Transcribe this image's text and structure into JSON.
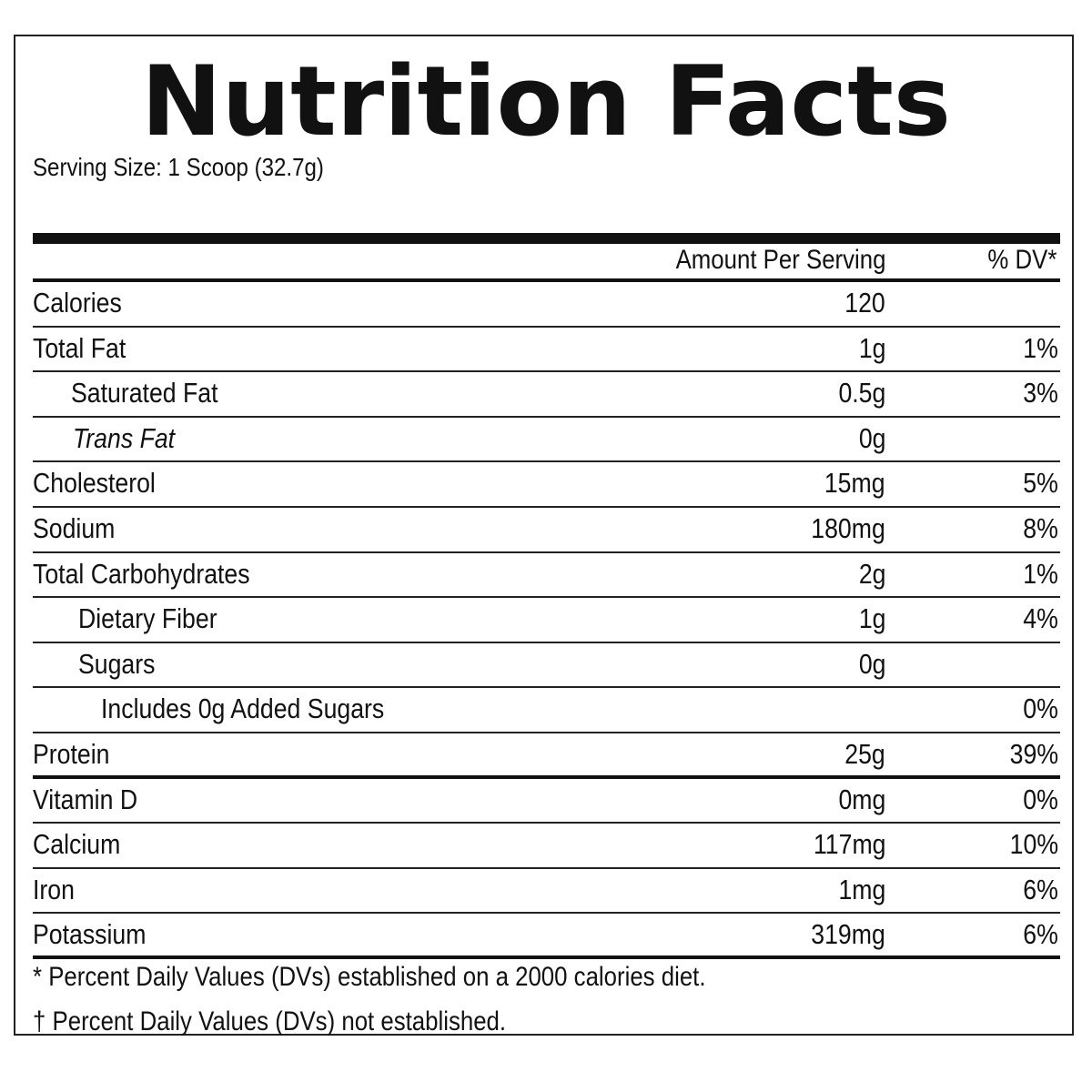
{
  "label": {
    "title": "Nutrition Facts",
    "serving_size": "Serving Size: 1 Scoop (32.7g)",
    "header": {
      "amount": "Amount Per Serving",
      "dv": "% DV*"
    },
    "rows": [
      {
        "name": "Calories",
        "amount": "120",
        "dv": ""
      },
      {
        "name": "Total Fat",
        "amount": "1g",
        "dv": "1%"
      },
      {
        "name": "Saturated Fat",
        "amount": "0.5g",
        "dv": "3%"
      },
      {
        "name": "Trans Fat",
        "amount": "0g",
        "dv": ""
      },
      {
        "name": "Cholesterol",
        "amount": "15mg",
        "dv": "5%"
      },
      {
        "name": "Sodium",
        "amount": "180mg",
        "dv": "8%"
      },
      {
        "name": "Total Carbohydrates",
        "amount": "2g",
        "dv": "1%"
      },
      {
        "name": "Dietary Fiber",
        "amount": "1g",
        "dv": "4%"
      },
      {
        "name": "Sugars",
        "amount": "0g",
        "dv": ""
      },
      {
        "name": "Includes 0g Added Sugars",
        "amount": "",
        "dv": "0%"
      },
      {
        "name": "Protein",
        "amount": "25g",
        "dv": "39%"
      },
      {
        "name": "Vitamin D",
        "amount": "0mg",
        "dv": "0%"
      },
      {
        "name": "Calcium",
        "amount": "117mg",
        "dv": "10%"
      },
      {
        "name": "Iron",
        "amount": "1mg",
        "dv": "6%"
      },
      {
        "name": "Potassium",
        "amount": "319mg",
        "dv": "6%"
      }
    ],
    "footnotes": [
      "* Percent Daily Values (DVs) established on a 2000 calories diet.",
      "† Percent Daily Values (DVs) not established."
    ]
  }
}
